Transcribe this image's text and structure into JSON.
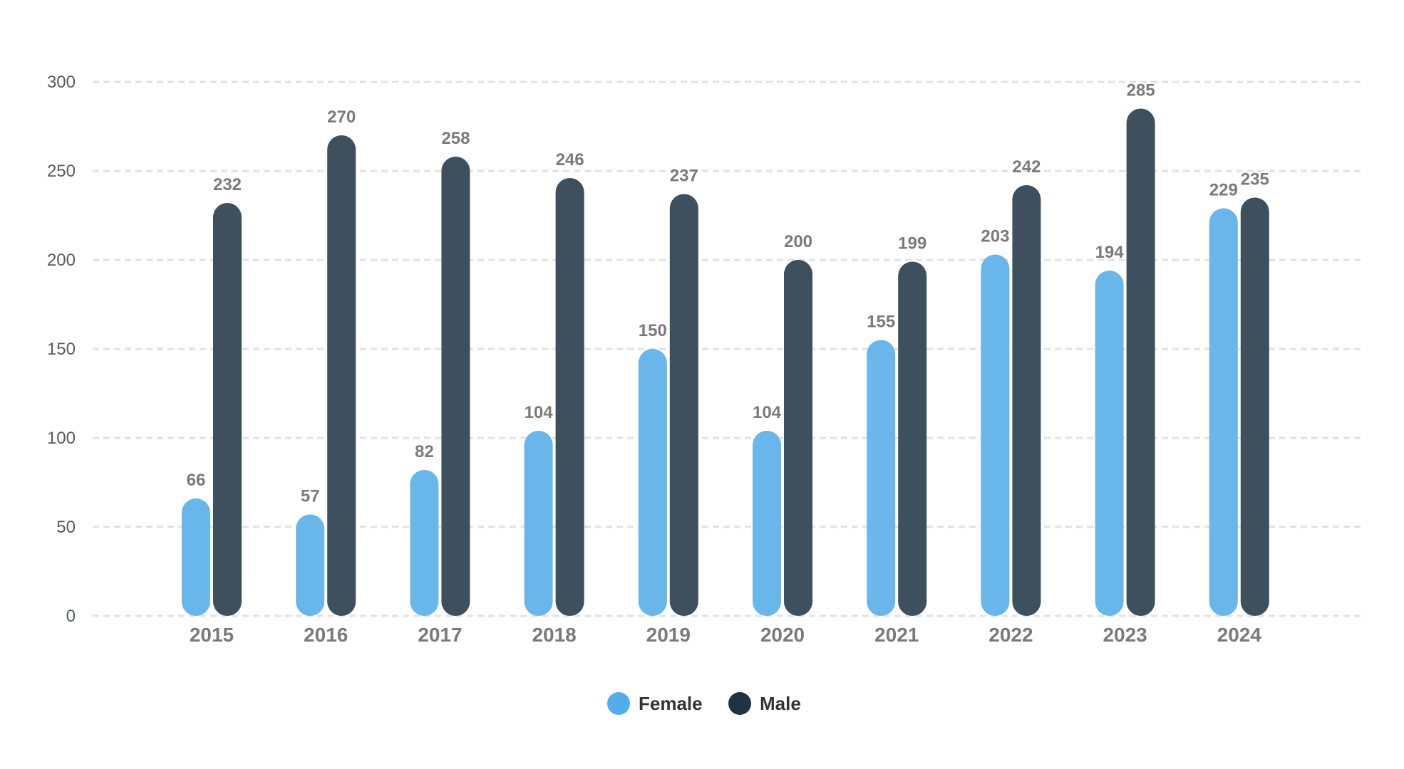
{
  "chart_data": {
    "type": "bar",
    "title": "",
    "xlabel": "",
    "ylabel": "",
    "ylim": [
      0,
      300
    ],
    "yticks": [
      0,
      50,
      100,
      150,
      200,
      250,
      300
    ],
    "grid": true,
    "legend_position": "bottom-center",
    "categories": [
      "2015",
      "2016",
      "2017",
      "2018",
      "2019",
      "2020",
      "2021",
      "2022",
      "2023",
      "2024"
    ],
    "series": [
      {
        "name": "Female",
        "color": "#69b6ea",
        "legend_color": "#52aeea",
        "values": [
          66,
          57,
          82,
          104,
          150,
          104,
          155,
          203,
          194,
          229
        ]
      },
      {
        "name": "Male",
        "color": "#3e505e",
        "legend_color": "#1f3342",
        "values": [
          232,
          270,
          258,
          246,
          237,
          200,
          199,
          242,
          285,
          235
        ]
      }
    ]
  }
}
